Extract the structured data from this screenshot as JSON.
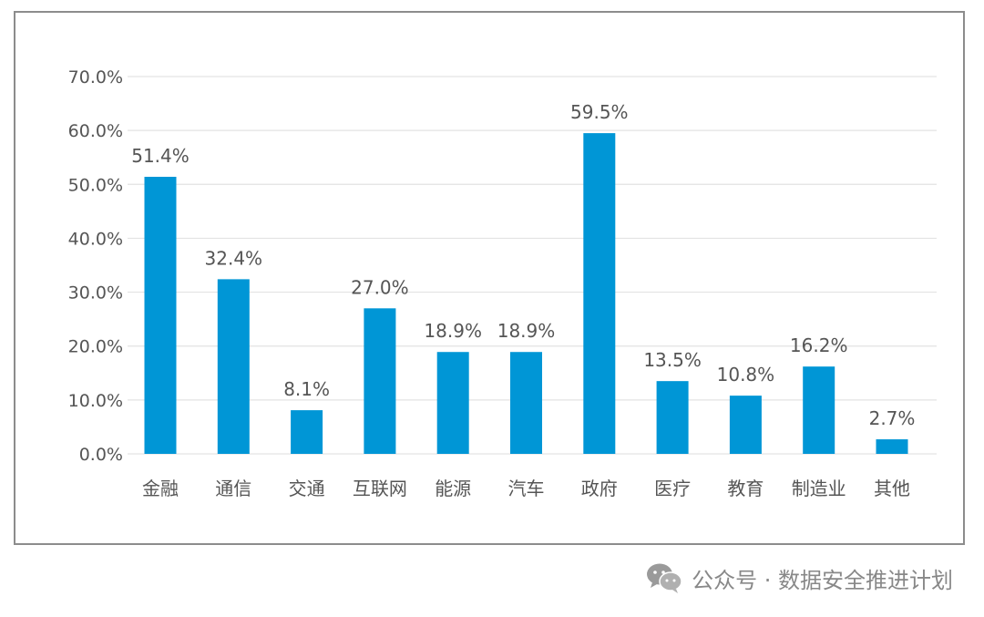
{
  "chart_data": {
    "type": "bar",
    "categories": [
      "金融",
      "通信",
      "交通",
      "互联网",
      "能源",
      "汽车",
      "政府",
      "医疗",
      "教育",
      "制造业",
      "其他"
    ],
    "values": [
      51.4,
      32.4,
      8.1,
      27.0,
      18.9,
      18.9,
      59.5,
      13.5,
      10.8,
      16.2,
      2.7
    ],
    "data_labels": [
      "51.4%",
      "32.4%",
      "8.1%",
      "27.0%",
      "18.9%",
      "18.9%",
      "59.5%",
      "13.5%",
      "10.8%",
      "16.2%",
      "2.7%"
    ],
    "y_ticks": [
      "0.0%",
      "10.0%",
      "20.0%",
      "30.0%",
      "40.0%",
      "50.0%",
      "60.0%",
      "70.0%"
    ],
    "ylim": [
      0,
      70
    ],
    "grid": true,
    "bar_color": "#0096d6"
  },
  "watermark": {
    "text": "公众号 · 数据安全推进计划",
    "icon": "wechat-icon"
  }
}
